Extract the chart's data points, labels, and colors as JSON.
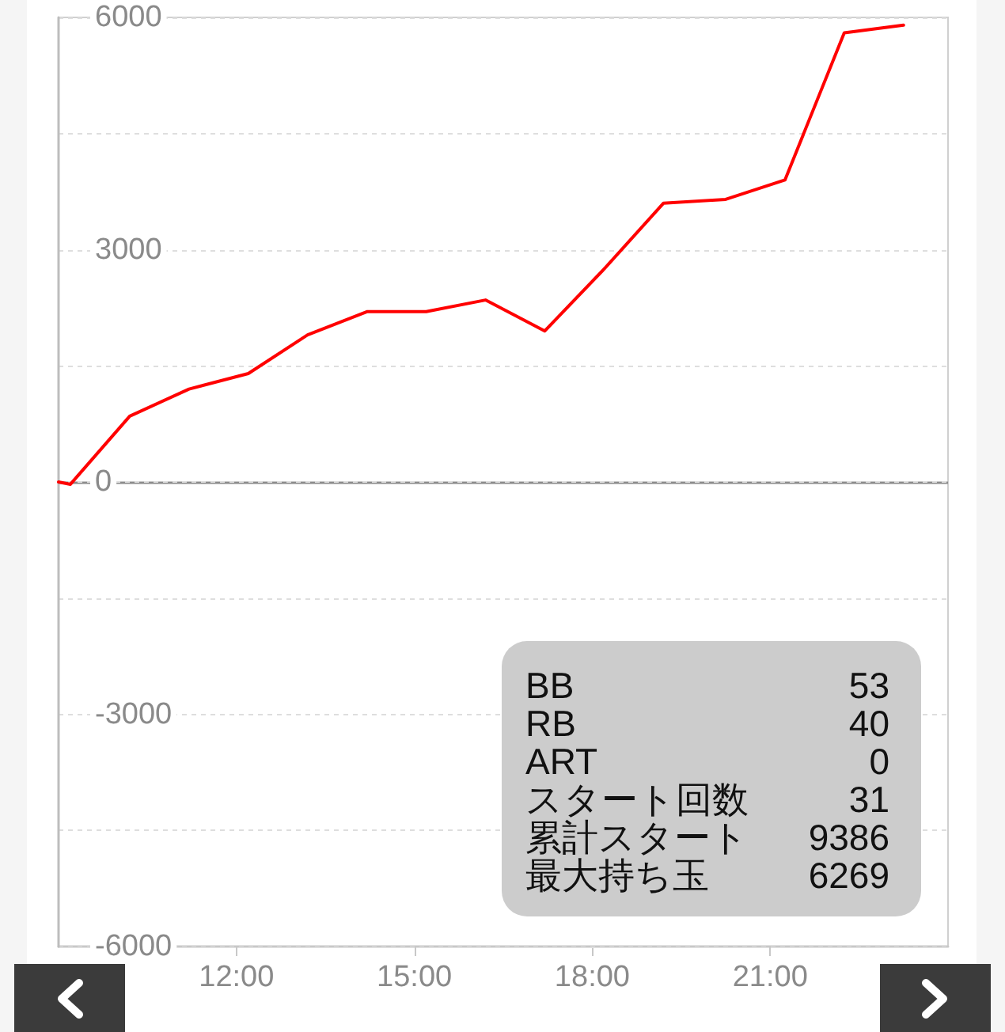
{
  "chart_data": {
    "type": "line",
    "x": [
      9,
      9.2,
      10.2,
      11.2,
      12.2,
      13.2,
      14.2,
      15.2,
      16.2,
      17.2,
      18.2,
      19.2,
      20.25,
      21.25,
      22.25,
      23.25
    ],
    "series": [
      {
        "color": "#ff0000",
        "values": [
          0,
          -30,
          850,
          1200,
          1400,
          1900,
          2200,
          2200,
          2350,
          1950,
          2750,
          3600,
          3650,
          3900,
          5800,
          5900
        ]
      }
    ],
    "xlim": [
      9,
      24
    ],
    "xticks": [
      {
        "value": 12,
        "label": "12:00"
      },
      {
        "value": 15,
        "label": "15:00"
      },
      {
        "value": 18,
        "label": "18:00"
      },
      {
        "value": 21,
        "label": "21:00"
      }
    ],
    "ylim": [
      -6000,
      6000
    ],
    "yticks": [
      -6000,
      {
        "value": -4500,
        "label": null
      },
      -3000,
      {
        "value": -1500,
        "label": null
      },
      0,
      {
        "value": 1500,
        "label": null
      },
      3000,
      {
        "value": 4500,
        "label": null
      },
      6000
    ],
    "grid": "y",
    "ref_lines": [
      {
        "axis": "y",
        "value": 0,
        "color": "#8c8c8c"
      }
    ],
    "annotations": [
      "BB",
      "53",
      "RB",
      "40",
      "ART",
      "0",
      "スタート回数",
      "31",
      "累計スタート",
      "9386",
      "最大持ち玉",
      "6269"
    ]
  }
}
